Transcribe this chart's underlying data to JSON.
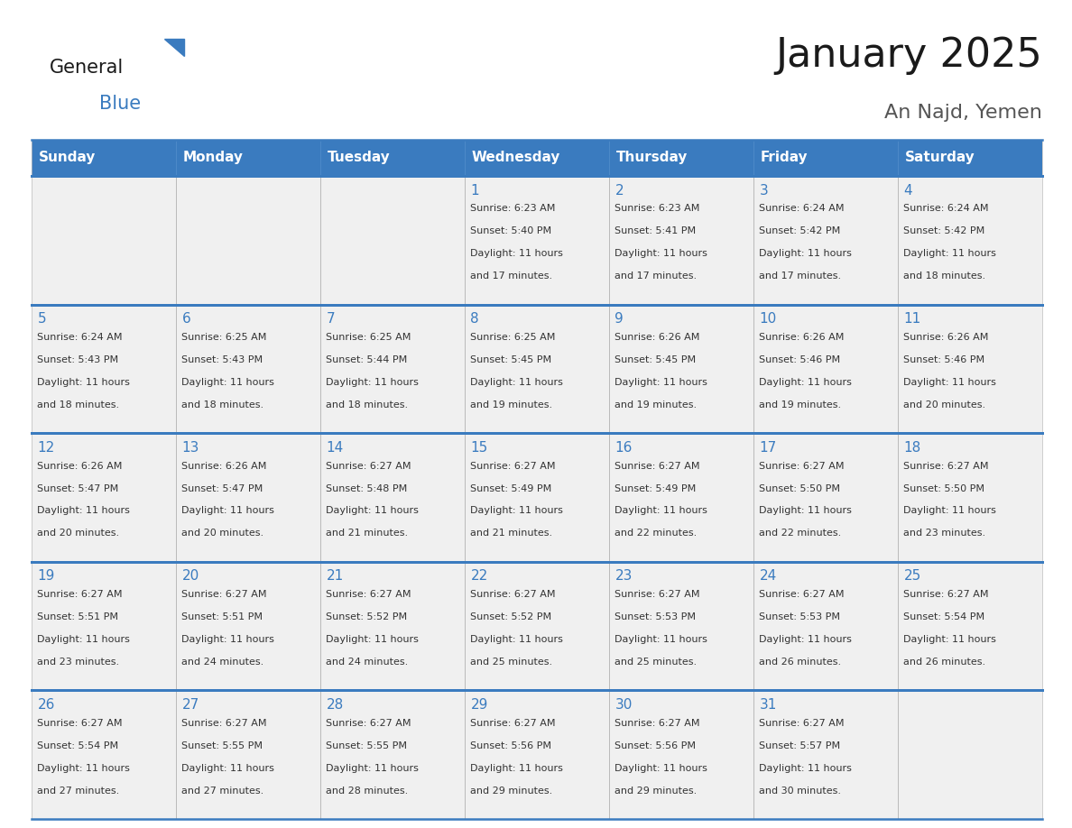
{
  "title": "January 2025",
  "subtitle": "An Najd, Yemen",
  "days_of_week": [
    "Sunday",
    "Monday",
    "Tuesday",
    "Wednesday",
    "Thursday",
    "Friday",
    "Saturday"
  ],
  "header_bg": "#3a7bbf",
  "header_text": "#ffffff",
  "cell_bg": "#f0f0f0",
  "cell_bg_white": "#ffffff",
  "border_color": "#3a7bbf",
  "day_num_color": "#3a7bbf",
  "cell_text_color": "#333333",
  "title_color": "#1a1a1a",
  "subtitle_color": "#555555",
  "logo_general_color": "#1a1a1a",
  "logo_blue_color": "#3a7bbf",
  "logo_triangle_color": "#3a7bbf",
  "weeks": [
    [
      {
        "day": null,
        "info": null
      },
      {
        "day": null,
        "info": null
      },
      {
        "day": null,
        "info": null
      },
      {
        "day": 1,
        "sunrise": "6:23 AM",
        "sunset": "5:40 PM",
        "daylight": "11 hours",
        "daylight2": "and 17 minutes."
      },
      {
        "day": 2,
        "sunrise": "6:23 AM",
        "sunset": "5:41 PM",
        "daylight": "11 hours",
        "daylight2": "and 17 minutes."
      },
      {
        "day": 3,
        "sunrise": "6:24 AM",
        "sunset": "5:42 PM",
        "daylight": "11 hours",
        "daylight2": "and 17 minutes."
      },
      {
        "day": 4,
        "sunrise": "6:24 AM",
        "sunset": "5:42 PM",
        "daylight": "11 hours",
        "daylight2": "and 18 minutes."
      }
    ],
    [
      {
        "day": 5,
        "sunrise": "6:24 AM",
        "sunset": "5:43 PM",
        "daylight": "11 hours",
        "daylight2": "and 18 minutes."
      },
      {
        "day": 6,
        "sunrise": "6:25 AM",
        "sunset": "5:43 PM",
        "daylight": "11 hours",
        "daylight2": "and 18 minutes."
      },
      {
        "day": 7,
        "sunrise": "6:25 AM",
        "sunset": "5:44 PM",
        "daylight": "11 hours",
        "daylight2": "and 18 minutes."
      },
      {
        "day": 8,
        "sunrise": "6:25 AM",
        "sunset": "5:45 PM",
        "daylight": "11 hours",
        "daylight2": "and 19 minutes."
      },
      {
        "day": 9,
        "sunrise": "6:26 AM",
        "sunset": "5:45 PM",
        "daylight": "11 hours",
        "daylight2": "and 19 minutes."
      },
      {
        "day": 10,
        "sunrise": "6:26 AM",
        "sunset": "5:46 PM",
        "daylight": "11 hours",
        "daylight2": "and 19 minutes."
      },
      {
        "day": 11,
        "sunrise": "6:26 AM",
        "sunset": "5:46 PM",
        "daylight": "11 hours",
        "daylight2": "and 20 minutes."
      }
    ],
    [
      {
        "day": 12,
        "sunrise": "6:26 AM",
        "sunset": "5:47 PM",
        "daylight": "11 hours",
        "daylight2": "and 20 minutes."
      },
      {
        "day": 13,
        "sunrise": "6:26 AM",
        "sunset": "5:47 PM",
        "daylight": "11 hours",
        "daylight2": "and 20 minutes."
      },
      {
        "day": 14,
        "sunrise": "6:27 AM",
        "sunset": "5:48 PM",
        "daylight": "11 hours",
        "daylight2": "and 21 minutes."
      },
      {
        "day": 15,
        "sunrise": "6:27 AM",
        "sunset": "5:49 PM",
        "daylight": "11 hours",
        "daylight2": "and 21 minutes."
      },
      {
        "day": 16,
        "sunrise": "6:27 AM",
        "sunset": "5:49 PM",
        "daylight": "11 hours",
        "daylight2": "and 22 minutes."
      },
      {
        "day": 17,
        "sunrise": "6:27 AM",
        "sunset": "5:50 PM",
        "daylight": "11 hours",
        "daylight2": "and 22 minutes."
      },
      {
        "day": 18,
        "sunrise": "6:27 AM",
        "sunset": "5:50 PM",
        "daylight": "11 hours",
        "daylight2": "and 23 minutes."
      }
    ],
    [
      {
        "day": 19,
        "sunrise": "6:27 AM",
        "sunset": "5:51 PM",
        "daylight": "11 hours",
        "daylight2": "and 23 minutes."
      },
      {
        "day": 20,
        "sunrise": "6:27 AM",
        "sunset": "5:51 PM",
        "daylight": "11 hours",
        "daylight2": "and 24 minutes."
      },
      {
        "day": 21,
        "sunrise": "6:27 AM",
        "sunset": "5:52 PM",
        "daylight": "11 hours",
        "daylight2": "and 24 minutes."
      },
      {
        "day": 22,
        "sunrise": "6:27 AM",
        "sunset": "5:52 PM",
        "daylight": "11 hours",
        "daylight2": "and 25 minutes."
      },
      {
        "day": 23,
        "sunrise": "6:27 AM",
        "sunset": "5:53 PM",
        "daylight": "11 hours",
        "daylight2": "and 25 minutes."
      },
      {
        "day": 24,
        "sunrise": "6:27 AM",
        "sunset": "5:53 PM",
        "daylight": "11 hours",
        "daylight2": "and 26 minutes."
      },
      {
        "day": 25,
        "sunrise": "6:27 AM",
        "sunset": "5:54 PM",
        "daylight": "11 hours",
        "daylight2": "and 26 minutes."
      }
    ],
    [
      {
        "day": 26,
        "sunrise": "6:27 AM",
        "sunset": "5:54 PM",
        "daylight": "11 hours",
        "daylight2": "and 27 minutes."
      },
      {
        "day": 27,
        "sunrise": "6:27 AM",
        "sunset": "5:55 PM",
        "daylight": "11 hours",
        "daylight2": "and 27 minutes."
      },
      {
        "day": 28,
        "sunrise": "6:27 AM",
        "sunset": "5:55 PM",
        "daylight": "11 hours",
        "daylight2": "and 28 minutes."
      },
      {
        "day": 29,
        "sunrise": "6:27 AM",
        "sunset": "5:56 PM",
        "daylight": "11 hours",
        "daylight2": "and 29 minutes."
      },
      {
        "day": 30,
        "sunrise": "6:27 AM",
        "sunset": "5:56 PM",
        "daylight": "11 hours",
        "daylight2": "and 29 minutes."
      },
      {
        "day": 31,
        "sunrise": "6:27 AM",
        "sunset": "5:57 PM",
        "daylight": "11 hours",
        "daylight2": "and 30 minutes."
      },
      {
        "day": null,
        "info": null
      }
    ]
  ]
}
